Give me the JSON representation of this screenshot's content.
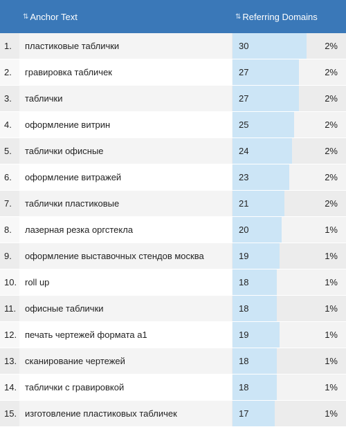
{
  "header": {
    "anchor_label": "Anchor Text",
    "domains_label": "Referring Domains",
    "sort_icon": "sort-icon"
  },
  "rows": [
    {
      "num": "1.",
      "anchor": "пластиковые таблички",
      "count": "30",
      "count_value": 30,
      "pct": "2%"
    },
    {
      "num": "2.",
      "anchor": "гравировка табличек",
      "count": "27",
      "count_value": 27,
      "pct": "2%"
    },
    {
      "num": "3.",
      "anchor": "таблички",
      "count": "27",
      "count_value": 27,
      "pct": "2%"
    },
    {
      "num": "4.",
      "anchor": "оформление витрин",
      "count": "25",
      "count_value": 25,
      "pct": "2%"
    },
    {
      "num": "5.",
      "anchor": "таблички офисные",
      "count": "24",
      "count_value": 24,
      "pct": "2%"
    },
    {
      "num": "6.",
      "anchor": "оформление витражей",
      "count": "23",
      "count_value": 23,
      "pct": "2%"
    },
    {
      "num": "7.",
      "anchor": "таблички пластиковые",
      "count": "21",
      "count_value": 21,
      "pct": "2%"
    },
    {
      "num": "8.",
      "anchor": "лазерная резка оргстекла",
      "count": "20",
      "count_value": 20,
      "pct": "1%"
    },
    {
      "num": "9.",
      "anchor": "оформление выставочных стендов москва",
      "count": "19",
      "count_value": 19,
      "pct": "1%"
    },
    {
      "num": "10.",
      "anchor": "roll up",
      "count": "18",
      "count_value": 18,
      "pct": "1%"
    },
    {
      "num": "11.",
      "anchor": "офисные таблички",
      "count": "18",
      "count_value": 18,
      "pct": "1%"
    },
    {
      "num": "12.",
      "anchor": "печать чертежей формата а1",
      "count": "19",
      "count_value": 19,
      "pct": "1%"
    },
    {
      "num": "13.",
      "anchor": "сканирование чертежей",
      "count": "18",
      "count_value": 18,
      "pct": "1%"
    },
    {
      "num": "14.",
      "anchor": "таблички с гравировкой",
      "count": "18",
      "count_value": 18,
      "pct": "1%"
    },
    {
      "num": "15.",
      "anchor": "изготовление пластиковых табличек",
      "count": "17",
      "count_value": 17,
      "pct": "1%"
    }
  ],
  "bar_max_value": 46,
  "colors": {
    "header_bg": "#3a78b8",
    "bar": "#cce5f6"
  }
}
